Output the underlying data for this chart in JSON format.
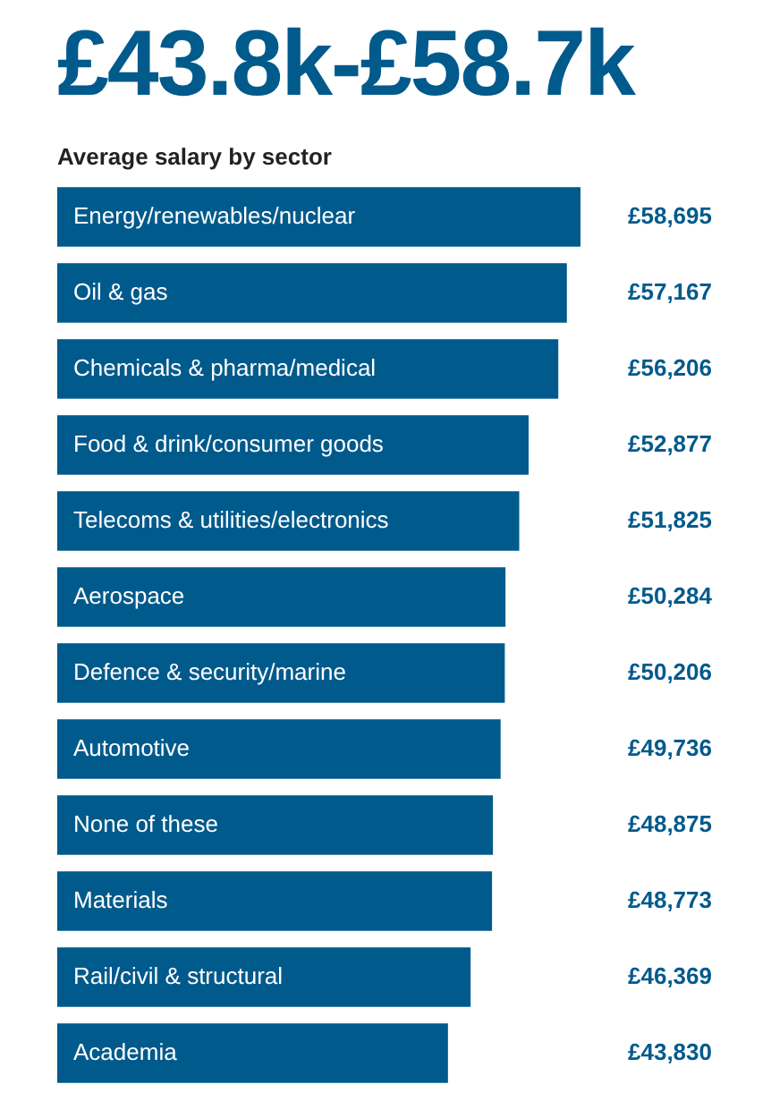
{
  "chart_data": {
    "type": "bar",
    "orientation": "horizontal",
    "title": "£43.8k-£58.7k",
    "subtitle": "Average salary by sector",
    "categories": [
      "Energy/renewables/nuclear",
      "Oil & gas",
      "Chemicals & pharma/medical",
      "Food & drink/consumer goods",
      "Telecoms & utilities/electronics",
      "Aerospace",
      "Defence & security/marine",
      "Automotive",
      "None of these",
      "Materials",
      "Rail/civil & structural",
      "Academia"
    ],
    "values": [
      58695,
      57167,
      56206,
      52877,
      51825,
      50284,
      50206,
      49736,
      48875,
      48773,
      46369,
      43830
    ],
    "value_labels": [
      "£58,695",
      "£57,167",
      "£56,206",
      "£52,877",
      "£51,825",
      "£50,284",
      "£50,206",
      "£49,736",
      "£48,875",
      "£48,773",
      "£46,369",
      "£43,830"
    ],
    "color": "#005a8c"
  }
}
